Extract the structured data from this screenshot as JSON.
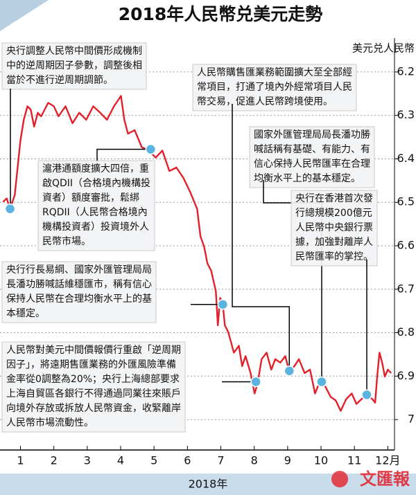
{
  "chart_data": {
    "type": "line",
    "title": "2018年人民幣兑美元走勢",
    "y_label": "美元兑人民幣",
    "x_label": "2018年",
    "watermark": "文匯報",
    "color": "#e3202a",
    "grid": true,
    "xlim": [
      0.45,
      12.2
    ],
    "xticks": [
      1,
      2,
      3,
      4,
      5,
      6,
      7,
      8,
      9,
      10,
      11,
      {
        "value": 12,
        "label": "12月"
      }
    ],
    "ylim": [
      7.07,
      6.13
    ],
    "yticks": [
      6.2,
      6.3,
      6.4,
      6.5,
      6.6,
      6.7,
      6.8,
      6.9,
      7.0
    ],
    "x": [
      0.48,
      0.59,
      0.69,
      0.83,
      1.0,
      1.1,
      1.21,
      1.31,
      1.41,
      1.52,
      1.62,
      1.83,
      2.0,
      2.14,
      2.35,
      2.56,
      2.76,
      2.97,
      3.18,
      3.39,
      3.59,
      3.8,
      4.01,
      4.11,
      4.22,
      4.42,
      4.63,
      4.84,
      5.05,
      5.25,
      5.46,
      5.67,
      5.88,
      6.08,
      6.29,
      6.39,
      6.5,
      6.6,
      6.71,
      6.85,
      6.91,
      6.98,
      7.06,
      7.12,
      7.22,
      7.39,
      7.54,
      7.64,
      7.74,
      7.89,
      8.01,
      8.1,
      8.22,
      8.37,
      8.51,
      8.63,
      8.78,
      8.93,
      9.05,
      9.2,
      9.34,
      9.51,
      9.67,
      9.82,
      9.96,
      10.13,
      10.29,
      10.44,
      10.59,
      10.75,
      10.92,
      11.06,
      11.21,
      11.37,
      11.54,
      11.62,
      11.68,
      11.75,
      11.83,
      11.91,
      12.0,
      12.1
    ],
    "values": [
      6.499,
      6.491,
      6.515,
      6.483,
      6.357,
      6.31,
      6.279,
      6.287,
      6.326,
      6.294,
      6.302,
      6.271,
      6.279,
      6.302,
      6.279,
      6.318,
      6.294,
      6.31,
      6.279,
      6.294,
      6.31,
      6.279,
      6.255,
      6.31,
      6.342,
      6.334,
      6.373,
      6.381,
      6.397,
      6.381,
      6.428,
      6.42,
      6.444,
      6.476,
      6.515,
      6.578,
      6.602,
      6.641,
      6.657,
      6.704,
      6.783,
      6.72,
      6.735,
      6.783,
      6.798,
      6.846,
      6.83,
      6.877,
      6.854,
      6.893,
      6.94,
      6.917,
      6.861,
      6.846,
      6.885,
      6.861,
      6.869,
      6.854,
      6.89,
      6.877,
      6.861,
      6.893,
      6.885,
      6.94,
      6.913,
      6.924,
      6.948,
      6.956,
      6.98,
      6.953,
      6.94,
      6.964,
      6.953,
      6.943,
      6.953,
      6.961,
      6.901,
      6.846,
      6.869,
      6.901,
      6.885,
      6.893
    ],
    "annotations": [
      {
        "x": 0.69,
        "y": 6.515,
        "lines": [
          "央行調整人民幣中間價形成機制",
          "中的逆周期因子參數，調整後相",
          "當於不進行逆周期調節。"
        ]
      },
      {
        "x": 4.9,
        "y": 6.378,
        "lines": [
          "滬港通額度擴大四倍，重",
          "啟QDII（合格境內機構投",
          "資者）額度審批，鬆綁",
          "RQDII（人民幣合格境內",
          "機構投資者）投資境外人",
          "民幣市場。"
        ]
      },
      {
        "x": 7.06,
        "y": 6.735,
        "lines": [
          "央行行長易綱、國家外匯管理局局",
          "長潘功勝喊話維穩匯市，稱有信心",
          "保持人民幣在合理均衡水平上的基",
          "本穩定。"
        ]
      },
      {
        "x": 8.05,
        "y": 6.913,
        "lines": [
          "人民幣對美元中間價報價行重啟「逆周期",
          "因子」，將遠期售匯業務的外匯風險準備",
          "金率從0調整為20%；央行上海總部要求",
          "上海自貿區各銀行不得通過同業往來賬戶",
          "向境外存放或拆放人民幣資金，收緊離岸",
          "人民幣市場流動性。"
        ]
      },
      {
        "x": 9.05,
        "y": 6.888,
        "lines": [
          "人民幣購售匯業務範圍擴大至全部經",
          "常項目，打通了境內外經常項目人民",
          "幣交易，促進人民幣跨境使用。"
        ]
      },
      {
        "x": 10.02,
        "y": 6.913,
        "lines": [
          "國家外匯管理局局長潘功勝",
          "喊話稱有基礎、有能力、有",
          "信心保持人民幣匯率在合理",
          "均衡水平上的基本穩定。"
        ]
      },
      {
        "x": 11.37,
        "y": 6.943,
        "lines": [
          "央行在香港首次發",
          "行總規模200億元",
          "人民幣中央銀行票",
          "據，加強對離岸人",
          "民幣匯率的掌控。"
        ]
      }
    ]
  }
}
